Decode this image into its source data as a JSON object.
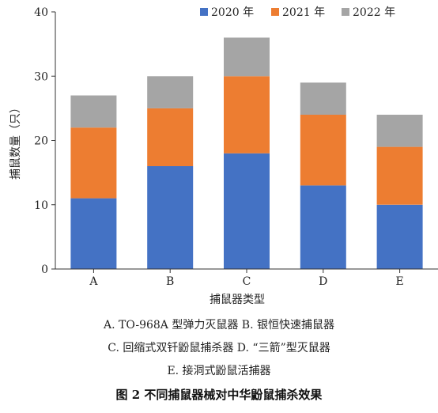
{
  "chart_data": {
    "type": "bar",
    "stacked": true,
    "categories": [
      "A",
      "B",
      "C",
      "D",
      "E"
    ],
    "series": [
      {
        "name": "2020 年",
        "values": [
          11,
          16,
          18,
          13,
          10
        ],
        "color": "#4472C4"
      },
      {
        "name": "2021 年",
        "values": [
          11,
          9,
          12,
          11,
          9
        ],
        "color": "#ED7D31"
      },
      {
        "name": "2022 年",
        "values": [
          5,
          5,
          6,
          5,
          5
        ],
        "color": "#A5A5A5"
      }
    ],
    "xlabel": "捕鼠器类型",
    "ylabel": "捕鼠数量（只）",
    "ylim": [
      0,
      40
    ],
    "yticks": [
      0,
      10,
      20,
      30,
      40
    ],
    "grid": false,
    "legend": "top-right"
  },
  "caption": {
    "line1": "A. TO-968A 型弹力灭鼠器  B. 银恒快速捕鼠器",
    "line2": "C. 回缩式双钎鼢鼠捕杀器  D. “三箭”型灭鼠器",
    "line3": "E. 接洞式鼢鼠活捕器",
    "title": "图 2   不同捕鼠器械对中华鼢鼠捕杀效果"
  }
}
